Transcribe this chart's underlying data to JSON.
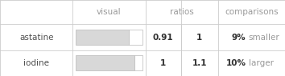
{
  "rows": [
    {
      "label": "astatine",
      "bar_ratio": 0.91,
      "ratio1": "0.91",
      "ratio2": "1",
      "pct": "9%",
      "comparison": "smaller"
    },
    {
      "label": "iodine",
      "bar_ratio": 1.0,
      "ratio1": "1",
      "ratio2": "1.1",
      "pct": "10%",
      "comparison": "larger"
    }
  ],
  "col_boundaries": [
    0.0,
    0.255,
    0.51,
    0.635,
    0.765,
    1.0
  ],
  "row_boundaries": [
    1.0,
    0.68,
    0.34,
    0.0
  ],
  "bar_color": "#d8d8d8",
  "bar_edge_color": "#b8b8b8",
  "bar_bg_color": "#ffffff",
  "header_text_color": "#999999",
  "label_text_color": "#505050",
  "ratio_bold_color": "#303030",
  "pct_bold_color": "#303030",
  "comparison_text_color": "#999999",
  "grid_color": "#cccccc",
  "background_color": "#ffffff",
  "font_size": 7.5,
  "header_font_size": 7.5,
  "max_bar_fill": 0.88
}
